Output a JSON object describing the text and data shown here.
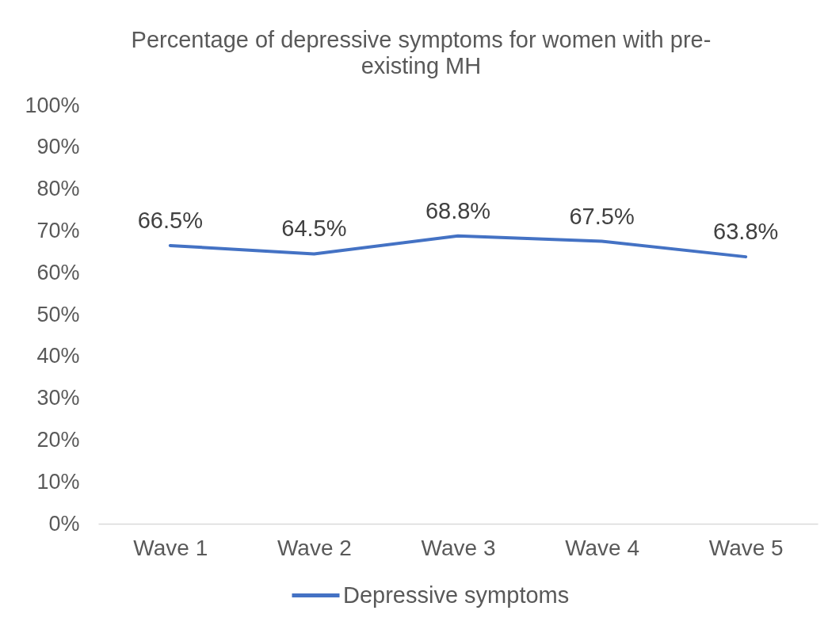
{
  "chart_data": {
    "type": "line",
    "title": "Percentage of depressive symptoms for women with pre-existing MH",
    "categories": [
      "Wave 1",
      "Wave 2",
      "Wave 3",
      "Wave 4",
      "Wave 5"
    ],
    "series": [
      {
        "name": "Depressive symptoms",
        "color": "#4472c4",
        "values": [
          66.5,
          64.5,
          68.8,
          67.5,
          63.8
        ],
        "value_labels": [
          "66.5%",
          "64.5%",
          "68.8%",
          "67.5%",
          "63.8%"
        ]
      }
    ],
    "ylim": [
      0,
      100
    ],
    "yticks": [
      {
        "value": 0,
        "label": "0%"
      },
      {
        "value": 10,
        "label": "10%"
      },
      {
        "value": 20,
        "label": "20%"
      },
      {
        "value": 30,
        "label": "30%"
      },
      {
        "value": 40,
        "label": "40%"
      },
      {
        "value": 50,
        "label": "50%"
      },
      {
        "value": 60,
        "label": "60%"
      },
      {
        "value": 70,
        "label": "70%"
      },
      {
        "value": 80,
        "label": "80%"
      },
      {
        "value": 90,
        "label": "90%"
      },
      {
        "value": 100,
        "label": "100%"
      }
    ],
    "grid": false,
    "legend": "bottom",
    "marker": "none",
    "line_style": "solid"
  }
}
